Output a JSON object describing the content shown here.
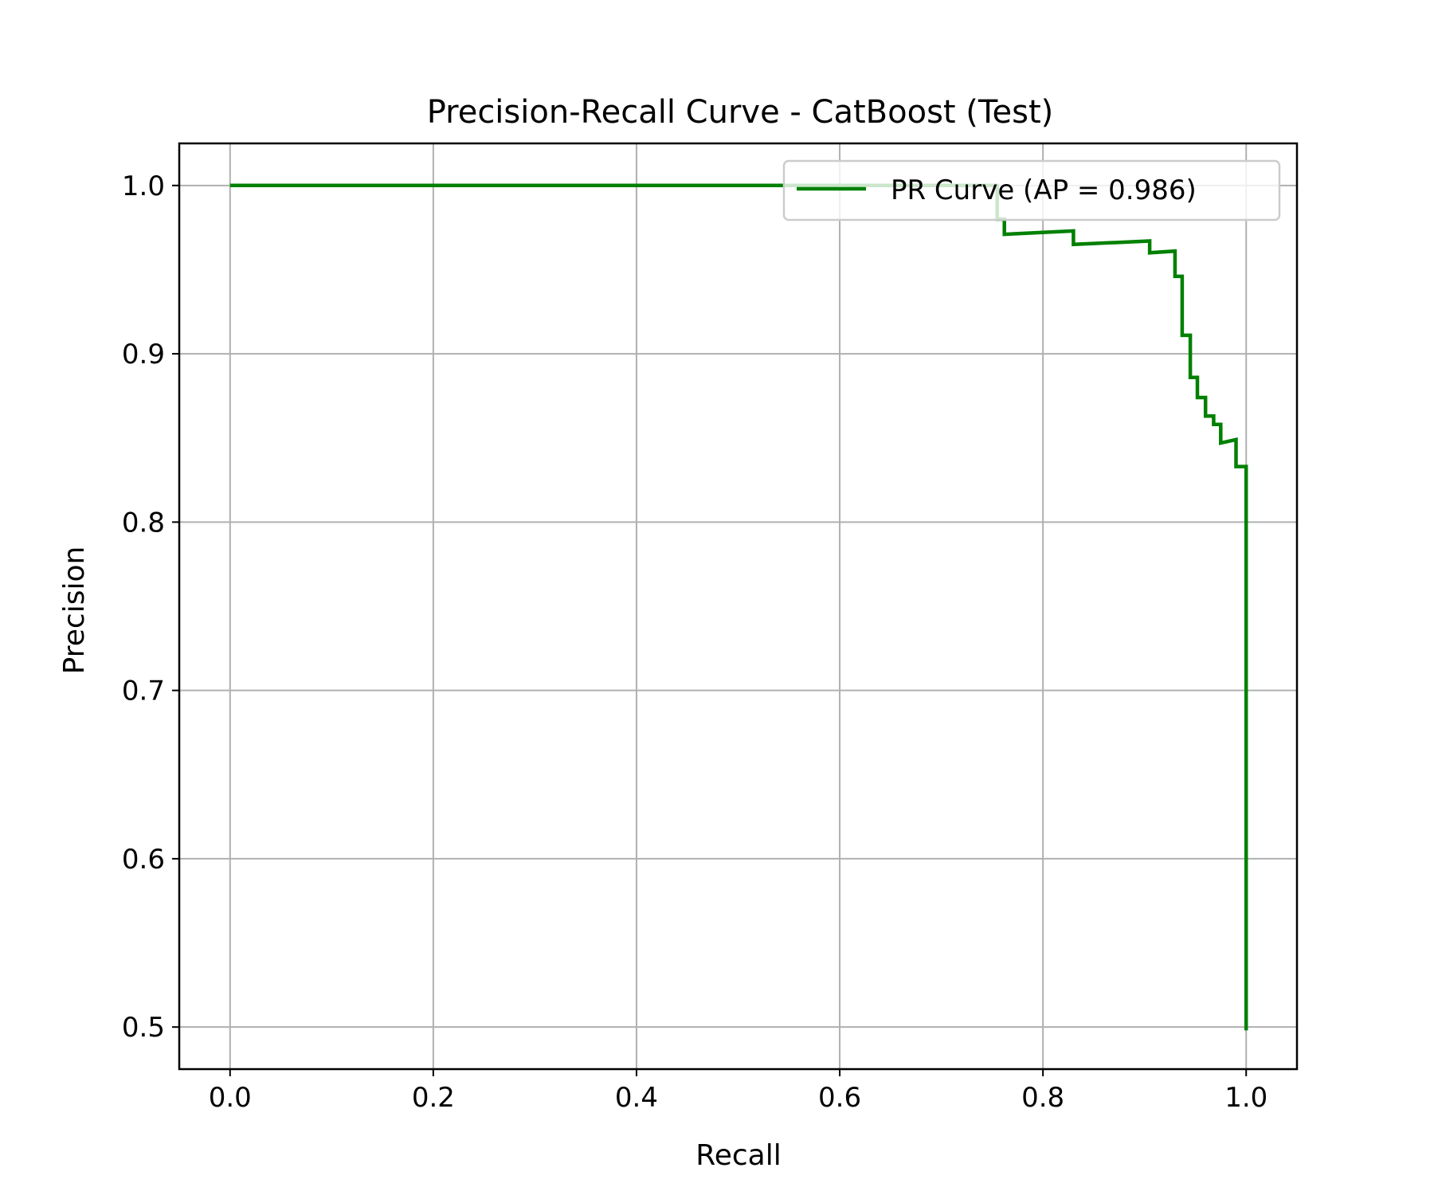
{
  "chart_data": {
    "type": "line",
    "title": "Precision-Recall Curve - CatBoost (Test)",
    "xlabel": "Recall",
    "ylabel": "Precision",
    "xlim": [
      -0.05,
      1.05
    ],
    "ylim": [
      0.475,
      1.025
    ],
    "xticks": [
      0.0,
      0.2,
      0.4,
      0.6,
      0.8,
      1.0
    ],
    "xtick_labels": [
      "0.0",
      "0.2",
      "0.4",
      "0.6",
      "0.8",
      "1.0"
    ],
    "yticks": [
      0.5,
      0.6,
      0.7,
      0.8,
      0.9,
      1.0
    ],
    "ytick_labels": [
      "0.5",
      "0.6",
      "0.7",
      "0.8",
      "0.9",
      "1.0"
    ],
    "grid": true,
    "legend_position": "upper right",
    "series": [
      {
        "name": "PR Curve (AP = 0.986)",
        "color": "#008000",
        "x": [
          0.0,
          0.755,
          0.755,
          0.762,
          0.762,
          0.83,
          0.83,
          0.905,
          0.905,
          0.93,
          0.93,
          0.937,
          0.937,
          0.945,
          0.945,
          0.952,
          0.952,
          0.96,
          0.96,
          0.968,
          0.968,
          0.975,
          0.975,
          0.99,
          0.99,
          1.0,
          1.0
        ],
        "y": [
          1.0,
          1.0,
          0.98,
          0.98,
          0.971,
          0.973,
          0.965,
          0.967,
          0.96,
          0.961,
          0.946,
          0.946,
          0.911,
          0.911,
          0.886,
          0.886,
          0.874,
          0.874,
          0.863,
          0.863,
          0.858,
          0.858,
          0.847,
          0.849,
          0.833,
          0.833,
          0.498
        ]
      }
    ]
  }
}
